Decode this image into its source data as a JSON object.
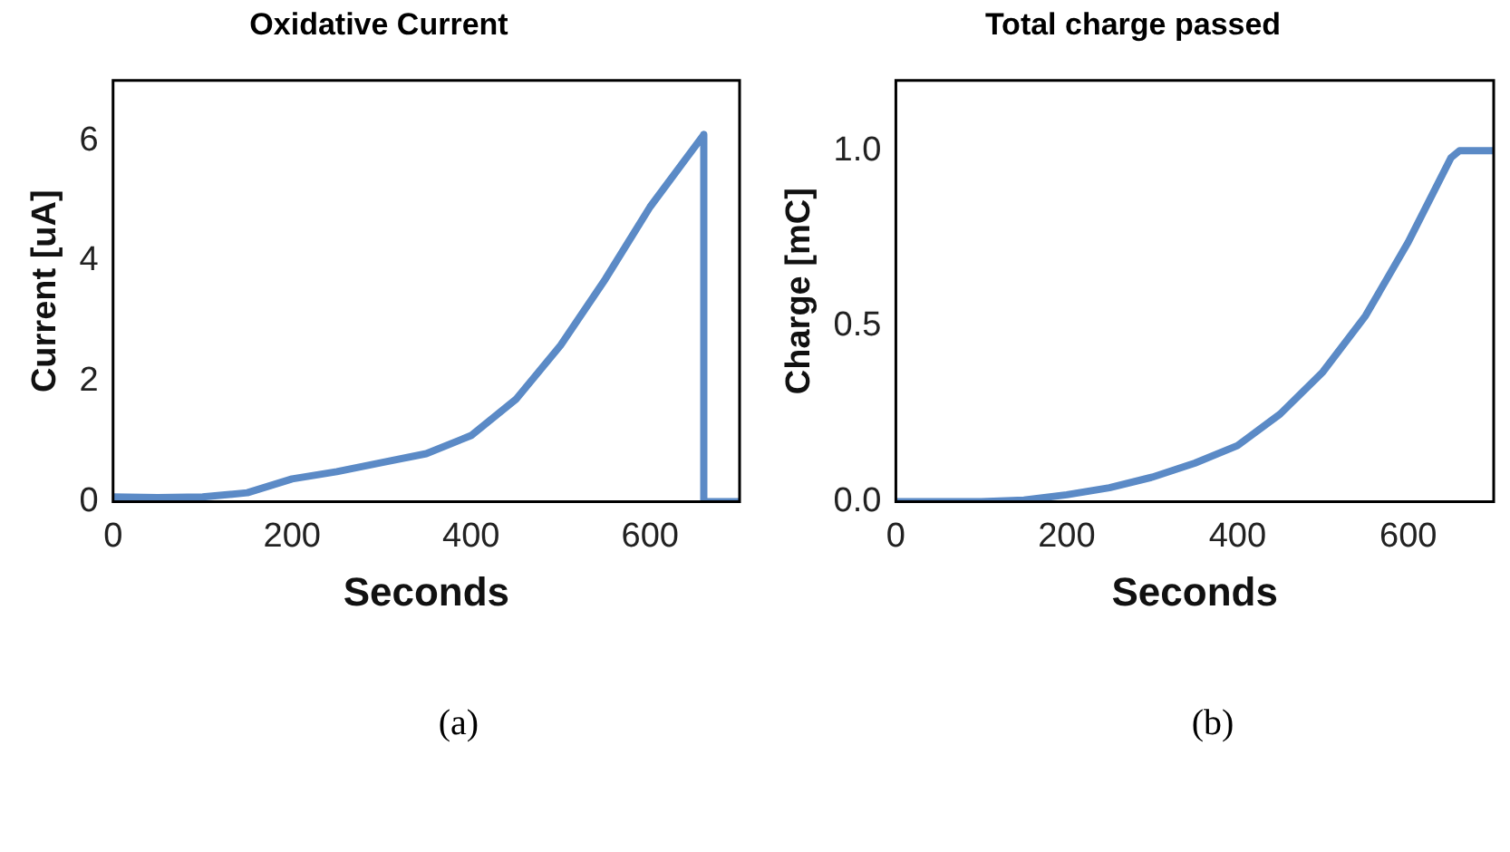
{
  "chart_data": [
    {
      "type": "line",
      "title": "Oxidative Current",
      "xlabel": "Seconds",
      "ylabel": "Current [uA]",
      "xlim": [
        0,
        700
      ],
      "xticks": [
        0,
        200,
        400,
        600
      ],
      "ylim": [
        0,
        7
      ],
      "yticks": [
        0,
        2,
        4,
        6
      ],
      "grid": false,
      "legend": false,
      "marker": "none",
      "line_style": "solid",
      "annotations": [
        "(a)"
      ],
      "series": [
        {
          "color": "#5b8ac6",
          "x": [
            0,
            50,
            100,
            150,
            200,
            250,
            300,
            350,
            400,
            450,
            500,
            550,
            600,
            650,
            660,
            660,
            700
          ],
          "values": [
            0.08,
            0.07,
            0.08,
            0.15,
            0.38,
            0.5,
            0.65,
            0.8,
            1.1,
            1.7,
            2.6,
            3.7,
            4.9,
            5.9,
            6.1,
            0,
            0
          ]
        }
      ]
    },
    {
      "type": "line",
      "title": "Total charge passed",
      "xlabel": "Seconds",
      "ylabel": "Charge [mC]",
      "xlim": [
        0,
        700
      ],
      "xticks": [
        0,
        200,
        400,
        600
      ],
      "ylim": [
        0,
        1.2
      ],
      "yticks": [
        {
          "value": 0,
          "label": "0.0"
        },
        {
          "value": 0.5,
          "label": "0.5"
        },
        {
          "value": 1,
          "label": "1.0"
        }
      ],
      "grid": false,
      "legend": false,
      "marker": "none",
      "line_style": "solid",
      "annotations": [
        "(b)"
      ],
      "series": [
        {
          "color": "#5b8ac6",
          "x": [
            0,
            100,
            150,
            200,
            250,
            300,
            350,
            400,
            450,
            500,
            550,
            600,
            650,
            660,
            700
          ],
          "values": [
            0,
            0,
            0.005,
            0.02,
            0.04,
            0.07,
            0.11,
            0.16,
            0.25,
            0.37,
            0.53,
            0.74,
            0.98,
            1.0,
            1.0
          ]
        }
      ]
    }
  ]
}
